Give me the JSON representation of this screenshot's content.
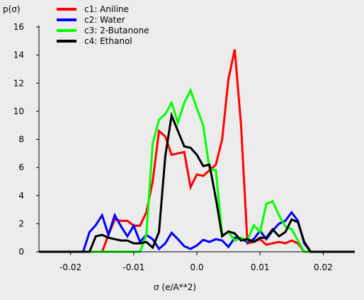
{
  "chart_data": {
    "type": "line",
    "title": "",
    "xlabel": "σ (e/A**2)",
    "ylabel": "p(σ)",
    "xlim": [
      -0.025,
      0.025
    ],
    "ylim": [
      0,
      16
    ],
    "xticks": [
      -0.02,
      -0.01,
      0.0,
      0.01,
      0.02
    ],
    "xtick_labels": [
      "-0.02",
      "-0.01",
      "0.0",
      "0.01",
      "0.02"
    ],
    "yticks": [
      0,
      2,
      4,
      6,
      8,
      10,
      12,
      14,
      16
    ],
    "ytick_labels": [
      "0",
      "2",
      "4",
      "6",
      "8",
      "10",
      "12",
      "14",
      "16"
    ],
    "grid": false,
    "legend_position": "top-left",
    "x": [
      -0.025,
      -0.018,
      -0.017,
      -0.016,
      -0.015,
      -0.014,
      -0.013,
      -0.012,
      -0.011,
      -0.01,
      -0.009,
      -0.008,
      -0.007,
      -0.006,
      -0.005,
      -0.004,
      -0.003,
      -0.002,
      -0.001,
      0.0,
      0.001,
      0.002,
      0.003,
      0.004,
      0.005,
      0.006,
      0.007,
      0.008,
      0.009,
      0.01,
      0.011,
      0.012,
      0.013,
      0.014,
      0.015,
      0.016,
      0.017,
      0.018,
      0.025
    ],
    "series": [
      {
        "name": "c1: Aniline",
        "color": "#ff0000",
        "values": [
          0,
          0,
          0,
          0,
          0,
          1.2,
          2.3,
          2.2,
          2.2,
          1.85,
          1.85,
          2.8,
          5.0,
          8.6,
          8.2,
          6.9,
          7.0,
          7.1,
          4.6,
          5.5,
          5.4,
          5.8,
          6.2,
          8.0,
          12.3,
          14.4,
          9.0,
          0.6,
          0.7,
          0.9,
          0.5,
          0.6,
          0.7,
          0.6,
          0.8,
          0.6,
          0,
          0,
          0
        ]
      },
      {
        "name": "c2: Water",
        "color": "#0000ff",
        "values": [
          0,
          0,
          1.4,
          1.9,
          2.6,
          1.2,
          2.6,
          1.8,
          1.1,
          1.85,
          0.7,
          1.2,
          0.9,
          0.2,
          0.6,
          1.35,
          0.9,
          0.4,
          0.2,
          0.45,
          0.85,
          0.7,
          0.9,
          0.8,
          0.35,
          1.0,
          0.9,
          0.7,
          0.9,
          1.5,
          0.9,
          1.5,
          2.0,
          2.2,
          2.8,
          2.2,
          0.6,
          0,
          0
        ]
      },
      {
        "name": "c3: 2-Butanone",
        "color": "#00ff00",
        "values": [
          0,
          0,
          0,
          0,
          0,
          0,
          0,
          0,
          0,
          0,
          0,
          1.2,
          7.7,
          9.4,
          9.8,
          10.6,
          9.2,
          10.6,
          11.5,
          10.2,
          9.0,
          5.9,
          5.8,
          1.2,
          1.4,
          0.8,
          1.0,
          0.8,
          1.9,
          1.4,
          3.4,
          3.6,
          2.6,
          1.8,
          1.6,
          0.8,
          0,
          0,
          0
        ]
      },
      {
        "name": "c4: Ethanol",
        "color": "#000000",
        "values": [
          0,
          0,
          0,
          1.1,
          1.2,
          1.0,
          0.9,
          0.8,
          0.8,
          0.6,
          0.6,
          0.7,
          0.3,
          1.4,
          6.8,
          9.7,
          8.6,
          7.5,
          7.4,
          6.9,
          6.1,
          6.2,
          3.8,
          1.1,
          1.45,
          1.3,
          0.8,
          0.9,
          0.7,
          1.0,
          1.0,
          1.6,
          1.1,
          1.4,
          2.3,
          2.1,
          0.7,
          0,
          0
        ]
      }
    ]
  }
}
